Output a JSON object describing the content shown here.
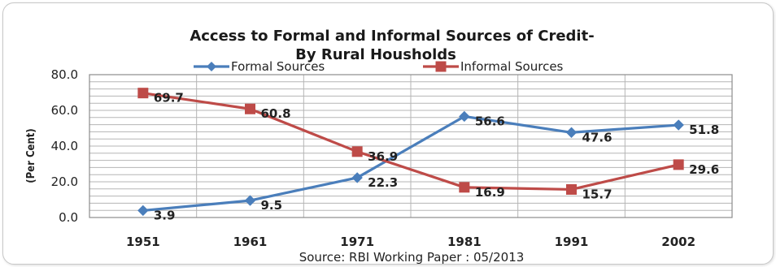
{
  "chart_data": {
    "type": "line",
    "title_line1": "Access to Formal and Informal Sources of Credit-",
    "title_line2": "By Rural Housholds",
    "ylabel": "(Per Cent)",
    "source": "Source: RBI Working Paper : 05/2013",
    "categories": [
      "1951",
      "1961",
      "1971",
      "1981",
      "1991",
      "2002"
    ],
    "ylim": [
      0,
      80
    ],
    "yticks": [
      "0.0",
      "20.0",
      "40.0",
      "60.0",
      "80.0"
    ],
    "grid": true,
    "legend_position": "top",
    "series": [
      {
        "name": "Formal Sources",
        "values": [
          3.9,
          9.5,
          22.3,
          56.6,
          47.6,
          51.8
        ],
        "labels": [
          "3.9",
          "9.5",
          "22.3",
          "56.6",
          "47.6",
          "51.8"
        ],
        "color": "#4a7ebb",
        "marker": "diamond"
      },
      {
        "name": "Informal Sources",
        "values": [
          69.7,
          60.8,
          36.9,
          16.9,
          15.7,
          29.6
        ],
        "labels": [
          "69.7",
          "60.8",
          "36.9",
          "16.9",
          "15.7",
          "29.6"
        ],
        "color": "#be4b48",
        "marker": "square"
      }
    ]
  }
}
